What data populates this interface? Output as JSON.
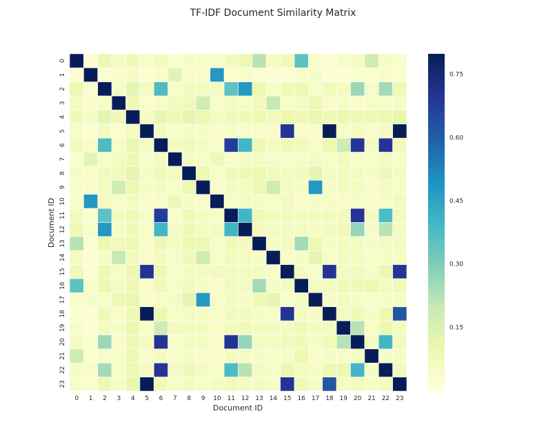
{
  "chart_data": {
    "type": "heatmap",
    "title": "TF-IDF Document Similarity Matrix",
    "xlabel": "Document ID",
    "ylabel": "Document ID",
    "categories": [
      "0",
      "1",
      "2",
      "3",
      "4",
      "5",
      "6",
      "7",
      "8",
      "9",
      "10",
      "11",
      "12",
      "13",
      "14",
      "15",
      "16",
      "17",
      "18",
      "19",
      "20",
      "21",
      "22",
      "23"
    ],
    "value_range": [
      0.0,
      0.8
    ],
    "colormap": "YlGnBu",
    "colorbar": {
      "ticks": [
        0.75,
        0.6,
        0.45,
        0.3,
        0.15
      ],
      "tick_labels": [
        "0.75",
        "0.60",
        "0.45",
        "0.30",
        "0.15"
      ]
    },
    "matrix": [
      [
        0.8,
        0.03,
        0.1,
        0.06,
        0.08,
        0.04,
        0.07,
        0.03,
        0.05,
        0.04,
        0.04,
        0.07,
        0.09,
        0.22,
        0.06,
        0.08,
        0.35,
        0.04,
        0.03,
        0.04,
        0.06,
        0.18,
        0.05,
        0.04
      ],
      [
        0.03,
        0.8,
        0.03,
        0.04,
        0.05,
        0.02,
        0.04,
        0.13,
        0.04,
        0.04,
        0.48,
        0.03,
        0.04,
        0.03,
        0.02,
        0.02,
        0.04,
        0.05,
        0.02,
        0.02,
        0.03,
        0.03,
        0.04,
        0.03
      ],
      [
        0.1,
        0.03,
        0.8,
        0.05,
        0.12,
        0.06,
        0.38,
        0.05,
        0.07,
        0.06,
        0.06,
        0.35,
        0.48,
        0.1,
        0.05,
        0.09,
        0.1,
        0.05,
        0.08,
        0.06,
        0.26,
        0.05,
        0.25,
        0.09
      ],
      [
        0.06,
        0.04,
        0.05,
        0.8,
        0.09,
        0.03,
        0.05,
        0.07,
        0.08,
        0.18,
        0.05,
        0.06,
        0.05,
        0.08,
        0.2,
        0.05,
        0.06,
        0.1,
        0.04,
        0.05,
        0.04,
        0.05,
        0.05,
        0.05
      ],
      [
        0.08,
        0.05,
        0.12,
        0.09,
        0.8,
        0.06,
        0.11,
        0.09,
        0.12,
        0.1,
        0.06,
        0.08,
        0.08,
        0.09,
        0.07,
        0.1,
        0.09,
        0.11,
        0.09,
        0.1,
        0.09,
        0.09,
        0.1,
        0.11
      ],
      [
        0.04,
        0.02,
        0.06,
        0.03,
        0.06,
        0.8,
        0.06,
        0.04,
        0.05,
        0.05,
        0.04,
        0.05,
        0.04,
        0.04,
        0.04,
        0.7,
        0.04,
        0.04,
        0.8,
        0.05,
        0.06,
        0.04,
        0.06,
        0.8
      ],
      [
        0.07,
        0.04,
        0.38,
        0.05,
        0.11,
        0.06,
        0.8,
        0.06,
        0.08,
        0.06,
        0.05,
        0.68,
        0.4,
        0.09,
        0.06,
        0.09,
        0.08,
        0.05,
        0.1,
        0.18,
        0.7,
        0.06,
        0.7,
        0.08
      ],
      [
        0.03,
        0.13,
        0.05,
        0.07,
        0.09,
        0.04,
        0.06,
        0.8,
        0.06,
        0.05,
        0.09,
        0.04,
        0.06,
        0.06,
        0.05,
        0.05,
        0.05,
        0.06,
        0.05,
        0.07,
        0.05,
        0.04,
        0.06,
        0.05
      ],
      [
        0.05,
        0.04,
        0.07,
        0.08,
        0.12,
        0.05,
        0.08,
        0.06,
        0.8,
        0.1,
        0.05,
        0.08,
        0.08,
        0.1,
        0.08,
        0.06,
        0.07,
        0.12,
        0.06,
        0.07,
        0.06,
        0.05,
        0.08,
        0.06
      ],
      [
        0.04,
        0.04,
        0.06,
        0.18,
        0.1,
        0.05,
        0.06,
        0.05,
        0.1,
        0.8,
        0.04,
        0.06,
        0.06,
        0.1,
        0.18,
        0.06,
        0.05,
        0.48,
        0.05,
        0.06,
        0.06,
        0.04,
        0.06,
        0.05
      ],
      [
        0.04,
        0.48,
        0.06,
        0.05,
        0.06,
        0.04,
        0.05,
        0.09,
        0.05,
        0.04,
        0.8,
        0.05,
        0.06,
        0.05,
        0.05,
        0.07,
        0.04,
        0.05,
        0.05,
        0.04,
        0.05,
        0.04,
        0.05,
        0.06
      ],
      [
        0.07,
        0.03,
        0.35,
        0.06,
        0.08,
        0.05,
        0.68,
        0.04,
        0.08,
        0.06,
        0.05,
        0.8,
        0.4,
        0.08,
        0.07,
        0.07,
        0.07,
        0.06,
        0.07,
        0.07,
        0.7,
        0.06,
        0.38,
        0.07
      ],
      [
        0.09,
        0.04,
        0.48,
        0.05,
        0.08,
        0.04,
        0.4,
        0.06,
        0.08,
        0.06,
        0.06,
        0.4,
        0.8,
        0.07,
        0.06,
        0.06,
        0.06,
        0.05,
        0.07,
        0.08,
        0.27,
        0.05,
        0.22,
        0.06
      ],
      [
        0.22,
        0.03,
        0.1,
        0.08,
        0.09,
        0.04,
        0.09,
        0.06,
        0.1,
        0.1,
        0.05,
        0.08,
        0.07,
        0.8,
        0.05,
        0.06,
        0.25,
        0.09,
        0.05,
        0.06,
        0.06,
        0.05,
        0.06,
        0.06
      ],
      [
        0.06,
        0.02,
        0.05,
        0.2,
        0.07,
        0.04,
        0.06,
        0.05,
        0.08,
        0.18,
        0.05,
        0.07,
        0.06,
        0.05,
        0.8,
        0.05,
        0.05,
        0.12,
        0.05,
        0.06,
        0.06,
        0.04,
        0.05,
        0.05
      ],
      [
        0.08,
        0.02,
        0.09,
        0.05,
        0.1,
        0.7,
        0.09,
        0.05,
        0.06,
        0.06,
        0.07,
        0.07,
        0.06,
        0.06,
        0.05,
        0.8,
        0.06,
        0.05,
        0.7,
        0.06,
        0.07,
        0.05,
        0.1,
        0.7
      ],
      [
        0.35,
        0.04,
        0.1,
        0.06,
        0.09,
        0.04,
        0.08,
        0.05,
        0.07,
        0.05,
        0.04,
        0.07,
        0.06,
        0.25,
        0.05,
        0.06,
        0.8,
        0.06,
        0.06,
        0.08,
        0.08,
        0.1,
        0.06,
        0.08
      ],
      [
        0.04,
        0.05,
        0.05,
        0.1,
        0.11,
        0.04,
        0.05,
        0.06,
        0.12,
        0.48,
        0.05,
        0.06,
        0.05,
        0.09,
        0.12,
        0.05,
        0.06,
        0.8,
        0.05,
        0.06,
        0.05,
        0.04,
        0.05,
        0.05
      ],
      [
        0.03,
        0.02,
        0.08,
        0.04,
        0.09,
        0.8,
        0.1,
        0.05,
        0.06,
        0.05,
        0.05,
        0.07,
        0.07,
        0.05,
        0.05,
        0.7,
        0.06,
        0.05,
        0.8,
        0.06,
        0.08,
        0.05,
        0.1,
        0.62
      ],
      [
        0.04,
        0.02,
        0.06,
        0.05,
        0.1,
        0.05,
        0.18,
        0.07,
        0.07,
        0.06,
        0.04,
        0.07,
        0.08,
        0.06,
        0.06,
        0.06,
        0.08,
        0.06,
        0.06,
        0.8,
        0.22,
        0.05,
        0.1,
        0.06
      ],
      [
        0.06,
        0.03,
        0.26,
        0.04,
        0.09,
        0.06,
        0.7,
        0.05,
        0.06,
        0.06,
        0.05,
        0.7,
        0.27,
        0.06,
        0.06,
        0.07,
        0.08,
        0.05,
        0.08,
        0.22,
        0.8,
        0.06,
        0.4,
        0.07
      ],
      [
        0.18,
        0.03,
        0.05,
        0.05,
        0.09,
        0.04,
        0.06,
        0.04,
        0.05,
        0.04,
        0.04,
        0.06,
        0.05,
        0.05,
        0.04,
        0.05,
        0.1,
        0.04,
        0.05,
        0.05,
        0.06,
        0.8,
        0.05,
        0.05
      ],
      [
        0.05,
        0.04,
        0.25,
        0.05,
        0.1,
        0.06,
        0.7,
        0.06,
        0.08,
        0.06,
        0.05,
        0.38,
        0.22,
        0.06,
        0.05,
        0.1,
        0.06,
        0.05,
        0.1,
        0.1,
        0.4,
        0.05,
        0.8,
        0.07
      ],
      [
        0.04,
        0.03,
        0.09,
        0.05,
        0.11,
        0.8,
        0.08,
        0.05,
        0.06,
        0.05,
        0.06,
        0.07,
        0.06,
        0.06,
        0.05,
        0.7,
        0.08,
        0.05,
        0.62,
        0.06,
        0.07,
        0.05,
        0.07,
        0.8
      ]
    ]
  }
}
